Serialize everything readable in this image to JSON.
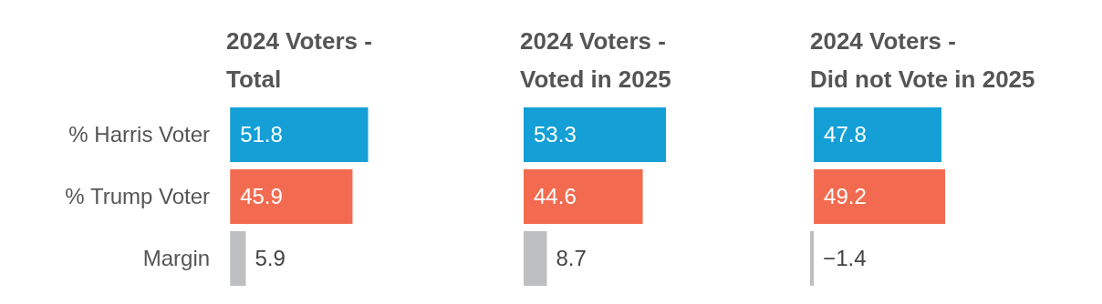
{
  "chart_data": [
    {
      "type": "bar",
      "orientation": "horizontal",
      "title": "2024 Voters -\nTotal",
      "categories": [
        "% Harris Voter",
        "% Trump Voter",
        "Margin"
      ],
      "values": [
        51.8,
        45.9,
        5.9
      ],
      "value_labels": [
        "51.8",
        "45.9",
        "5.9"
      ],
      "colors": [
        "#149fd6",
        "#f26b50",
        "#bdbfc0"
      ],
      "tick_labels": "y",
      "grid": false,
      "legend": false
    },
    {
      "type": "bar",
      "orientation": "horizontal",
      "title": "2024 Voters -\nVoted in 2025",
      "categories": [
        null,
        null,
        null
      ],
      "values": [
        53.3,
        44.6,
        8.7
      ],
      "value_labels": [
        "53.3",
        "44.6",
        "8.7"
      ],
      "colors": [
        "#149fd6",
        "#f26b50",
        "#bdbfc0"
      ],
      "tick_labels": false,
      "grid": false,
      "legend": false
    },
    {
      "type": "bar",
      "orientation": "horizontal",
      "title": "2024 Voters -\nDid not Vote in 2025",
      "categories": [
        null,
        null,
        null
      ],
      "values": [
        47.8,
        49.2,
        -1.4
      ],
      "value_labels": [
        "47.8",
        "49.2",
        "−1.4"
      ],
      "colors": [
        "#149fd6",
        "#f26b50",
        "#bdbfc0"
      ],
      "tick_labels": false,
      "grid": false,
      "legend": false
    }
  ]
}
